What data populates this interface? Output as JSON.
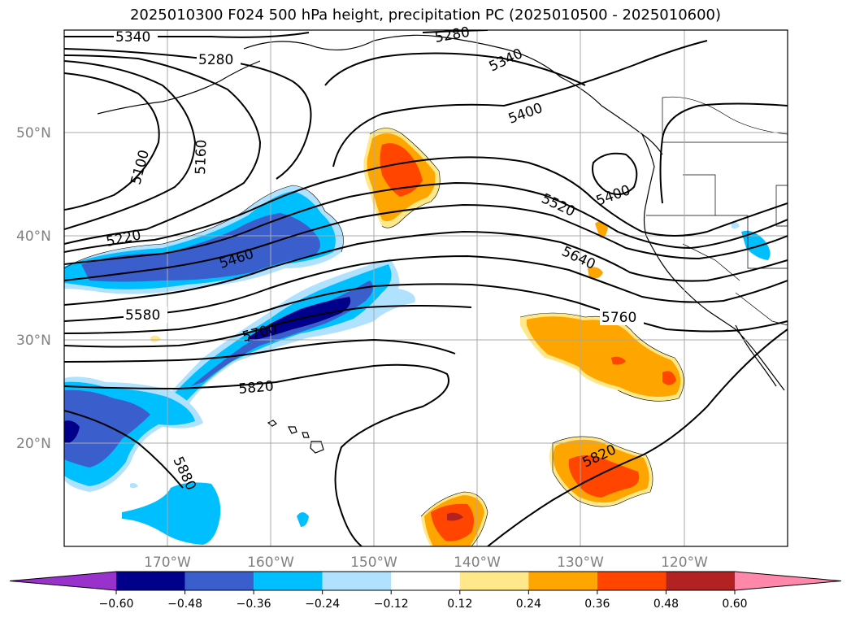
{
  "title": "2025010300 F024 500 hPa height, precipitation PC (2025010500 - 2025010600)",
  "lat_labels": [
    "50°N",
    "40°N",
    "30°N",
    "20°N"
  ],
  "lon_labels": [
    "170°W",
    "160°W",
    "150°W",
    "140°W",
    "130°W",
    "120°W"
  ],
  "contour_labels": [
    "5340",
    "5280",
    "5280",
    "5340",
    "5400",
    "5100",
    "5160",
    "5220",
    "5460",
    "5400",
    "5520",
    "5640",
    "5580",
    "5700",
    "5760",
    "5820",
    "5880",
    "5820"
  ],
  "colorbar": {
    "ticks": [
      "−0.60",
      "−0.48",
      "−0.36",
      "−0.24",
      "−0.12",
      "0.12",
      "0.24",
      "0.36",
      "0.48",
      "0.60"
    ],
    "colors": [
      "#9932cc",
      "#00008b",
      "#3a5fcd",
      "#00bfff",
      "#b0e2ff",
      "#ffffff",
      "#ffe88a",
      "#ffa500",
      "#ff4500",
      "#b22222",
      "#ff88aa"
    ]
  },
  "fill_colors": {
    "pos1": "#ffe88a",
    "pos2": "#ffa500",
    "pos3": "#ff4500",
    "neg1": "#b0e2ff",
    "neg2": "#00bfff",
    "neg3": "#3a5fcd",
    "neg4": "#00008b",
    "neg5": "#9932cc"
  }
}
